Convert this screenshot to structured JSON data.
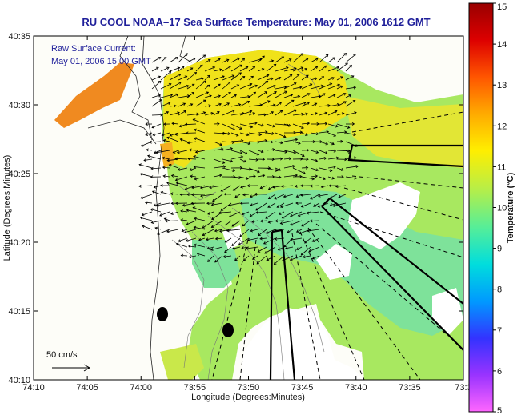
{
  "title": "RU COOL  NOAA–17  Sea Surface Temperature:  May 01, 2006 1612 GMT",
  "legend": {
    "line1": "Raw Surface Current:",
    "line2": "May 01, 2006 15:00 GMT"
  },
  "scale_label": "50 cm/s",
  "xaxis": {
    "label": "Longitude (Degrees:Minutes)",
    "ticks": [
      "74:10",
      "74:05",
      "74:00",
      "73:55",
      "73:50",
      "73:45",
      "73:40",
      "73:35",
      "73:3"
    ]
  },
  "yaxis": {
    "label": "Latitude (Degrees:Minutes)",
    "ticks": [
      "40:35",
      "40:30",
      "40:25",
      "40:20",
      "40:15",
      "40:10"
    ]
  },
  "colorbar": {
    "title": "Temperature (°C)",
    "ticks": [
      "15",
      "14",
      "13",
      "12",
      "11",
      "10",
      "9",
      "8",
      "7",
      "6",
      "5"
    ],
    "min": 5,
    "max": 15,
    "colors": [
      "#ff66ff",
      "#9933ff",
      "#3333ff",
      "#0099ff",
      "#00dddd",
      "#55ee99",
      "#bbee44",
      "#ffee00",
      "#ffaa00",
      "#ff5500",
      "#dd0000",
      "#990000"
    ]
  },
  "colors": {
    "ocean_main": "#a8e860",
    "ocean_cool": "#7ee29a",
    "ocean_warm": "#f0e21a",
    "ocean_hot": "#f08a20",
    "land": "#fdfdf8",
    "frame": "#000000"
  }
}
